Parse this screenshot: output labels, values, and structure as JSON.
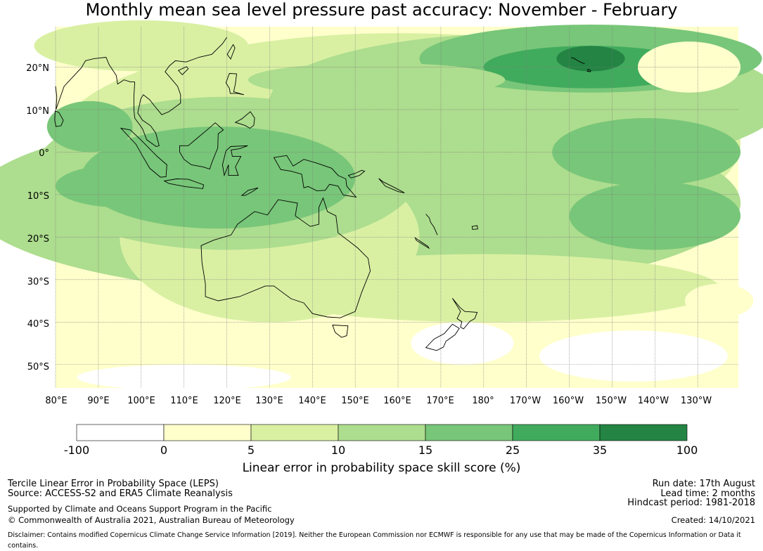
{
  "title": "Monthly mean sea level pressure past accuracy: November - February",
  "map": {
    "lat_labels": [
      "20°N",
      "10°N",
      "0°",
      "10°S",
      "20°S",
      "30°S",
      "40°S",
      "50°S"
    ],
    "lon_labels": [
      "80°E",
      "90°E",
      "100°E",
      "110°E",
      "120°E",
      "130°E",
      "140°E",
      "150°E",
      "160°E",
      "170°E",
      "180°",
      "170°W",
      "160°W",
      "150°W",
      "140°W",
      "130°W"
    ],
    "extent": {
      "lon_min": 80,
      "lon_max": 239.5,
      "lat_min": -55.5,
      "lat_max": 29.5
    }
  },
  "colorbar": {
    "ticks": [
      "-100",
      "0",
      "5",
      "10",
      "15",
      "25",
      "35",
      "100"
    ],
    "colors": [
      "#ffffff",
      "#ffffcc",
      "#d9f0a3",
      "#addd8e",
      "#78c679",
      "#41ab5d",
      "#238443"
    ],
    "label": "Linear error in probability space skill score (%)"
  },
  "footer": {
    "left_line1": "Tercile Linear Error in Probability Space (LEPS)",
    "left_line2": "Source: ACCESS-S2 and ERA5 Climate Reanalysis",
    "left_line3": "Supported by Climate and Oceans Support Program in the Pacific",
    "left_line4": "© Commonwealth of Australia 2021, Australian Bureau of Meteorology",
    "right_line1": "Run date: 17th August",
    "right_line2": "Lead time: 2 months",
    "right_line3": "Hindcast period: 1981-2018",
    "right_line4": "Created: 14/10/2021",
    "disclaimer": "Disclaimer: Contains modified Copernicus Climate Change Service Information [2019]. Neither the European Commission nor ECMWF is responsible for any use that may be made of the Copernicus Information or Data it contains."
  }
}
